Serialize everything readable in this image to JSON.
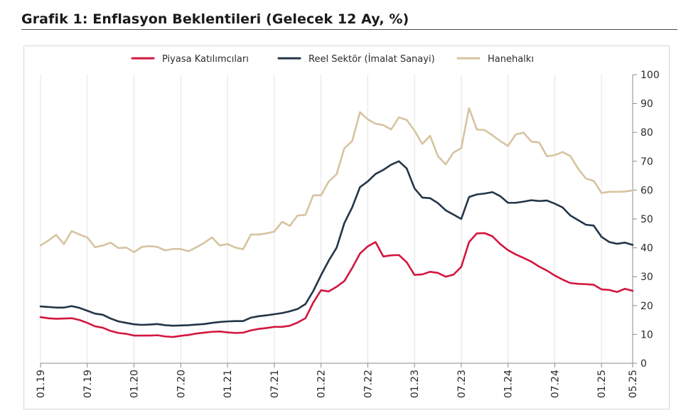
{
  "heading": "Grafik 1: Enflasyon Beklentileri (Gelecek 12 Ay, %)",
  "chart_data": {
    "type": "line",
    "title": "Grafik 1: Enflasyon Beklentileri (Gelecek 12 Ay, %)",
    "ylim": [
      0,
      100
    ],
    "y_ticks": [
      0,
      10,
      20,
      30,
      40,
      50,
      60,
      70,
      80,
      90,
      100
    ],
    "x_tick_labels": [
      "01.19",
      "07.19",
      "01.20",
      "07.20",
      "01.21",
      "07.21",
      "01.22",
      "07.22",
      "01.23",
      "07.23",
      "01.24",
      "07.24",
      "01.25",
      "05.25"
    ],
    "x_start": "01.19",
    "grid": "vertical",
    "legend_position": "top",
    "series": [
      {
        "name": "Piyasa Katılımcıları",
        "color": "#d3163f",
        "values": [
          16.0,
          15.6,
          15.4,
          15.5,
          15.6,
          15.0,
          14.0,
          12.8,
          12.3,
          11.2,
          10.5,
          10.2,
          9.6,
          9.6,
          9.6,
          9.7,
          9.3,
          9.1,
          9.5,
          9.8,
          10.3,
          10.6,
          10.9,
          11.0,
          10.7,
          10.5,
          10.6,
          11.4,
          11.9,
          12.2,
          12.6,
          12.6,
          13.0,
          14.1,
          15.6,
          21.0,
          25.3,
          24.9,
          26.5,
          28.5,
          33.0,
          38.0,
          40.5,
          42.0,
          37.0,
          37.4,
          37.5,
          35.0,
          30.6,
          30.8,
          31.7,
          31.3,
          30.0,
          30.7,
          33.4,
          42.0,
          45.0,
          45.1,
          44.0,
          41.3,
          39.2,
          37.7,
          36.5,
          35.2,
          33.5,
          32.1,
          30.4,
          29.0,
          27.8,
          27.5,
          27.4,
          27.2,
          25.6,
          25.4,
          24.7,
          25.8,
          25.1
        ]
      },
      {
        "name": "Reel Sektör (İmalat Sanayi)",
        "color": "#233547",
        "values": [
          19.7,
          19.5,
          19.3,
          19.3,
          19.8,
          19.2,
          18.2,
          17.2,
          16.8,
          15.5,
          14.5,
          14.0,
          13.5,
          13.3,
          13.4,
          13.6,
          13.2,
          13.0,
          13.1,
          13.2,
          13.4,
          13.6,
          14.0,
          14.3,
          14.5,
          14.6,
          14.6,
          15.8,
          16.3,
          16.6,
          17.0,
          17.4,
          18.0,
          18.8,
          20.5,
          25.0,
          30.5,
          35.6,
          40.0,
          48.6,
          54.0,
          61.0,
          63.0,
          65.6,
          67.0,
          68.8,
          70.0,
          67.5,
          60.6,
          57.4,
          57.2,
          55.5,
          53.0,
          51.5,
          50.0,
          57.6,
          58.5,
          58.8,
          59.3,
          57.9,
          55.6,
          55.6,
          56.0,
          56.5,
          56.2,
          56.4,
          55.3,
          54.0,
          51.2,
          49.6,
          48.0,
          47.7,
          43.8,
          42.0,
          41.4,
          41.8,
          41.0
        ]
      },
      {
        "name": "Hanehalkı",
        "color": "#d6c4a0",
        "values": [
          40.8,
          42.5,
          44.5,
          41.3,
          45.8,
          44.6,
          43.6,
          40.2,
          40.8,
          41.8,
          39.9,
          40.1,
          38.5,
          40.3,
          40.6,
          40.3,
          39.1,
          39.6,
          39.6,
          38.8,
          40.2,
          41.7,
          43.6,
          40.8,
          41.3,
          40.1,
          39.5,
          44.6,
          44.6,
          45.0,
          45.6,
          49.0,
          47.6,
          51.2,
          51.4,
          58.2,
          58.2,
          63.0,
          65.5,
          74.5,
          77.0,
          87.0,
          84.5,
          83.0,
          82.5,
          81.0,
          85.2,
          84.3,
          80.6,
          76.0,
          78.8,
          71.8,
          68.9,
          73.0,
          74.5,
          88.4,
          81.0,
          80.8,
          79.0,
          77.0,
          75.3,
          79.3,
          79.9,
          76.8,
          76.5,
          71.7,
          72.1,
          73.2,
          71.8,
          67.4,
          64.0,
          63.2,
          59.0,
          59.4,
          59.4,
          59.5,
          59.9
        ]
      }
    ]
  }
}
